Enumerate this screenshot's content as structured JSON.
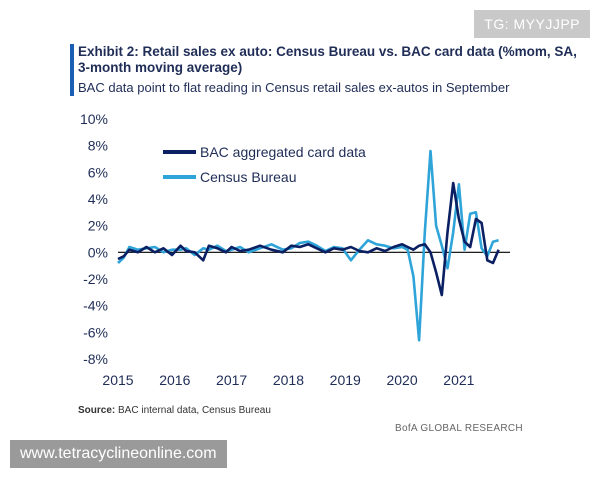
{
  "watermark_top": "TG: MYYJJPP",
  "title": "Exhibit 2: Retail sales ex auto: Census Bureau vs. BAC card data (%mom, SA, 3-month moving average)",
  "subtitle": "BAC data point to flat reading in Census retail sales ex-autos in September",
  "source_label": "Source:",
  "source_text": "BAC internal data, Census  Bureau",
  "brand": "BofA GLOBAL RESEARCH",
  "watermark_bottom": "www.tetracyclineonline.com",
  "colors": {
    "bac": "#0b1f63",
    "census": "#2fa4d9",
    "accent": "#1a5fb4"
  },
  "chart_data": {
    "type": "line",
    "title": "",
    "xlabel": "",
    "ylabel": "",
    "x_ticks": [
      "2015",
      "2016",
      "2017",
      "2018",
      "2019",
      "2020",
      "2021"
    ],
    "y_ticks": [
      "10%",
      "8%",
      "6%",
      "4%",
      "2%",
      "0%",
      "-2%",
      "-4%",
      "-6%",
      "-8%"
    ],
    "ylim": [
      -8,
      10
    ],
    "xlim": [
      2015.0,
      2021.9
    ],
    "legend_position": "top-left",
    "series": [
      {
        "name": "BAC aggregated card data",
        "x": [
          2015.0,
          2015.1,
          2015.2,
          2015.35,
          2015.5,
          2015.65,
          2015.8,
          2015.95,
          2016.1,
          2016.2,
          2016.35,
          2016.5,
          2016.6,
          2016.75,
          2016.9,
          2017.0,
          2017.15,
          2017.3,
          2017.5,
          2017.7,
          2017.9,
          2018.05,
          2018.2,
          2018.35,
          2018.5,
          2018.65,
          2018.8,
          2018.95,
          2019.1,
          2019.25,
          2019.4,
          2019.55,
          2019.7,
          2019.85,
          2020.0,
          2020.1,
          2020.2,
          2020.3,
          2020.4,
          2020.5,
          2020.6,
          2020.7,
          2020.8,
          2020.9,
          2021.0,
          2021.1,
          2021.2,
          2021.3,
          2021.4,
          2021.5,
          2021.6,
          2021.7
        ],
        "values": [
          -0.5,
          -0.3,
          0.2,
          0.0,
          0.4,
          0.0,
          0.3,
          -0.2,
          0.5,
          0.1,
          0.0,
          -0.6,
          0.5,
          0.3,
          0.0,
          0.4,
          0.1,
          0.2,
          0.5,
          0.2,
          0.0,
          0.5,
          0.4,
          0.6,
          0.3,
          0.0,
          0.3,
          0.2,
          0.4,
          0.1,
          0.0,
          0.3,
          0.1,
          0.4,
          0.6,
          0.4,
          0.2,
          0.5,
          0.6,
          0.0,
          -1.5,
          -3.2,
          1.5,
          5.2,
          2.5,
          0.8,
          0.4,
          2.5,
          2.2,
          -0.6,
          -0.8,
          0.2
        ]
      },
      {
        "name": "Census Bureau",
        "x": [
          2015.0,
          2015.1,
          2015.2,
          2015.35,
          2015.5,
          2015.65,
          2015.8,
          2015.95,
          2016.1,
          2016.2,
          2016.35,
          2016.5,
          2016.6,
          2016.75,
          2016.9,
          2017.0,
          2017.15,
          2017.3,
          2017.5,
          2017.7,
          2017.9,
          2018.05,
          2018.2,
          2018.35,
          2018.5,
          2018.65,
          2018.8,
          2018.95,
          2019.1,
          2019.25,
          2019.4,
          2019.55,
          2019.7,
          2019.85,
          2020.0,
          2020.1,
          2020.2,
          2020.3,
          2020.4,
          2020.5,
          2020.6,
          2020.7,
          2020.8,
          2020.9,
          2021.0,
          2021.1,
          2021.2,
          2021.3,
          2021.4,
          2021.5,
          2021.6,
          2021.7
        ],
        "values": [
          -0.8,
          -0.4,
          0.4,
          0.2,
          0.3,
          0.4,
          0.0,
          0.2,
          0.2,
          0.3,
          -0.2,
          0.3,
          0.2,
          0.5,
          0.1,
          0.2,
          0.4,
          0.0,
          0.3,
          0.6,
          0.2,
          0.3,
          0.7,
          0.8,
          0.5,
          0.1,
          0.4,
          0.3,
          -0.6,
          0.2,
          0.9,
          0.6,
          0.5,
          0.3,
          0.4,
          0.2,
          -1.8,
          -6.6,
          1.5,
          7.6,
          2.0,
          0.5,
          -1.2,
          1.5,
          5.1,
          0.2,
          2.9,
          3.0,
          0.3,
          -0.3,
          0.8,
          0.9
        ]
      }
    ]
  }
}
